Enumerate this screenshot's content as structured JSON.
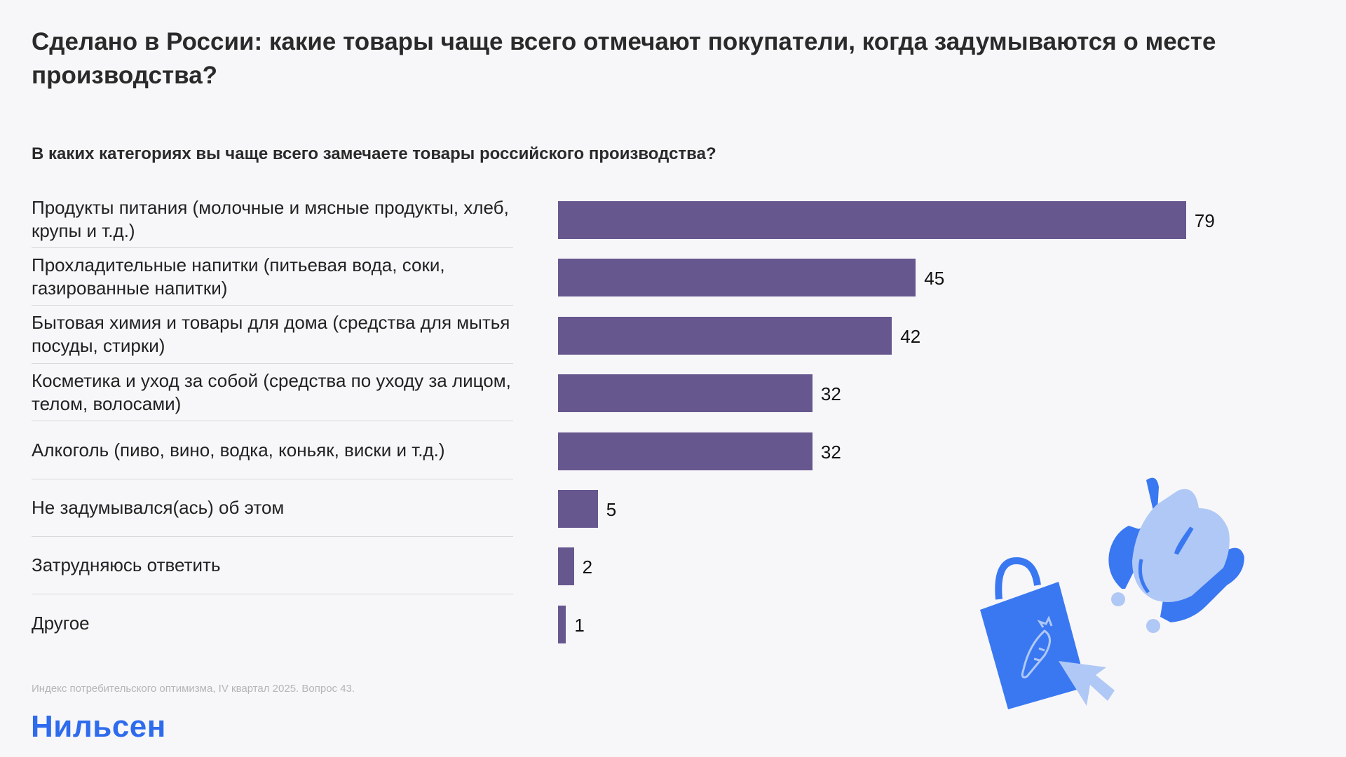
{
  "title": "Сделано в России: какие товары чаще всего отмечают покупатели, когда задумываются о месте производства?",
  "chart_data": {
    "type": "bar",
    "orientation": "horizontal",
    "title": "В каких категориях вы чаще всего замечаете товары российского производства?",
    "categories": [
      "Продукты питания (молочные и мясные продукты, хлеб, крупы и т.д.)",
      "Прохладительные напитки (питьевая вода, соки, газированные напитки)",
      "Бытовая химия и товары для дома (средства для мытья посуды, стирки)",
      "Косметика и уход за собой (средства по уходу за лицом, телом, волосами)",
      "Алкоголь (пиво, вино, водка, коньяк, виски и т.д.)",
      "Не задумывался(ась) об этом",
      "Затрудняюсь ответить",
      "Другое"
    ],
    "values": [
      79,
      45,
      42,
      32,
      32,
      5,
      2,
      1
    ],
    "value_labels": [
      "79",
      "45",
      "42",
      "32",
      "32",
      "5",
      "2",
      "1"
    ],
    "bar_color": "#67578f",
    "grid": false
  },
  "footnote": "Индекс потребительского оптимизма, IV квартал 2025. Вопрос 43.",
  "logo": "Нильсен",
  "colors": {
    "brand": "#2e6bed",
    "illustration_dark": "#3a78f2",
    "illustration_light": "#b0c8f5"
  }
}
